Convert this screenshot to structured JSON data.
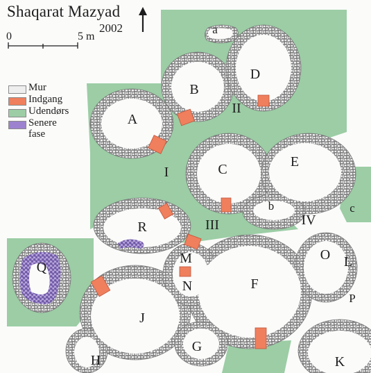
{
  "title": "Shaqarat Mazyad",
  "year": "2002",
  "scale": {
    "start": "0",
    "end": "5 m"
  },
  "north_arrow": "north-arrow-icon",
  "colors": {
    "wall": "#eeeeef",
    "entrance": "#ef7f5d",
    "outdoor": "#9ccda5",
    "later_phase": "#9d82cf",
    "stone_outline": "#707070"
  },
  "legend": [
    {
      "key": "wall",
      "label": "Mur"
    },
    {
      "key": "entrance",
      "label": "Indgang"
    },
    {
      "key": "outdoor",
      "label": "Udendørs"
    },
    {
      "key": "later_phase",
      "label": "Senere\nfase"
    }
  ],
  "rooms": {
    "A": "A",
    "B": "B",
    "C": "C",
    "D": "D",
    "E": "E",
    "F": "F",
    "G": "G",
    "H": "H",
    "J": "J",
    "K": "K",
    "L": "L",
    "M": "M",
    "N": "N",
    "O": "O",
    "P": "P",
    "Q": "Q",
    "R": "R",
    "a": "a",
    "b": "b",
    "c": "c"
  },
  "courtyards": {
    "I": "I",
    "II": "II",
    "III": "III",
    "IV": "IV"
  }
}
